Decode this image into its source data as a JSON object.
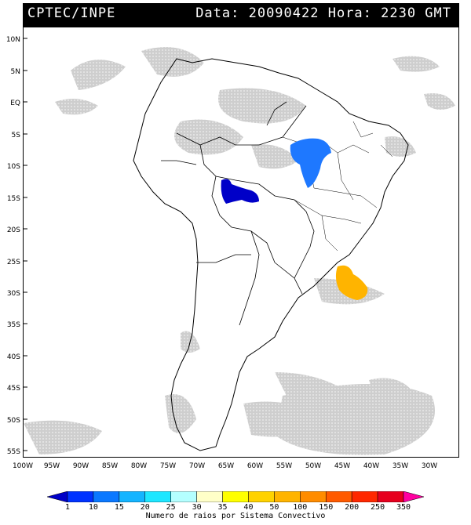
{
  "header": {
    "agency": "CPTEC/INPE",
    "datetime": "Data: 20090422 Hora: 2230 GMT"
  },
  "lat_labels": [
    "10N",
    "5N",
    "EQ",
    "5S",
    "10S",
    "15S",
    "20S",
    "25S",
    "30S",
    "35S",
    "40S",
    "45S",
    "50S",
    "55S"
  ],
  "lon_labels": [
    "100W",
    "95W",
    "90W",
    "85W",
    "80W",
    "75W",
    "70W",
    "65W",
    "60W",
    "55W",
    "50W",
    "45W",
    "40W",
    "35W",
    "30W"
  ],
  "legend": {
    "title": "Numero de raios por Sistema Convectivo",
    "ticks": [
      "1",
      "10",
      "15",
      "20",
      "25",
      "30",
      "35",
      "40",
      "50",
      "100",
      "150",
      "200",
      "250",
      "350"
    ],
    "colors": [
      "#0000c8",
      "#0032ff",
      "#0a78ff",
      "#14b4ff",
      "#1ee6ff",
      "#b4ffff",
      "#ffffc8",
      "#ffff00",
      "#ffd200",
      "#ffb400",
      "#ff8c00",
      "#ff5a00",
      "#ff2800",
      "#e6001e",
      "#ff00a0"
    ]
  },
  "systems": [
    {
      "region": "central-brazil",
      "color": "#1e78ff"
    },
    {
      "region": "bolivia-border",
      "color": "#0000c8"
    },
    {
      "region": "south-atlantic",
      "color": "#ffb400"
    }
  ]
}
